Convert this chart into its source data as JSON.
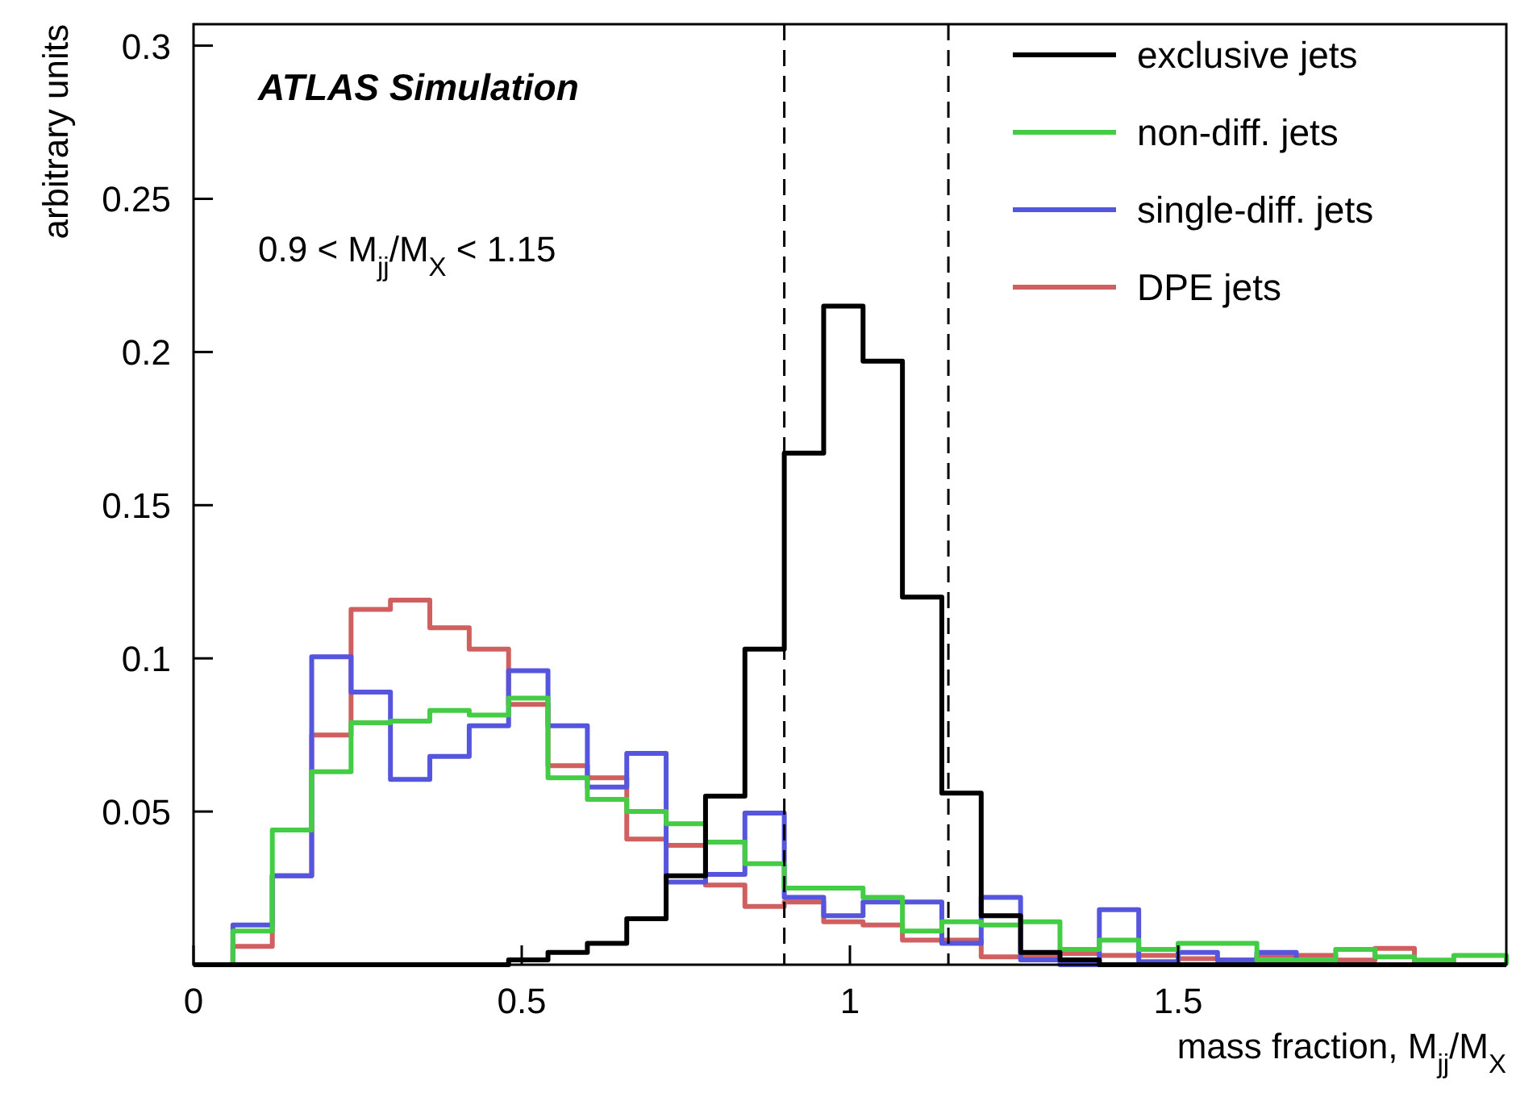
{
  "chart_data": {
    "type": "histogram",
    "xlabel": "mass fraction, M$_{jj}$/M$_{X}$",
    "ylabel": "arbitrary units",
    "annotations": [
      "ATLAS Simulation",
      "0.9 < M$_{jj}$/M$_{X}$ < 1.15"
    ],
    "bins": [
      0,
      0.06,
      0.12,
      0.18,
      0.24,
      0.3,
      0.36,
      0.42,
      0.48,
      0.54,
      0.6,
      0.66,
      0.72,
      0.78,
      0.84,
      0.9,
      0.96,
      1.02,
      1.08,
      1.14,
      1.2,
      1.26,
      1.32,
      1.38,
      1.44,
      1.5,
      1.56,
      1.62,
      1.68,
      1.74,
      1.8,
      1.86,
      1.92,
      1.98,
      2.0
    ],
    "series": [
      {
        "name": "exclusive jets",
        "color": "#000000",
        "values": [
          0,
          0,
          0,
          0,
          0,
          0,
          0,
          0,
          0.0016,
          0.004,
          0.007,
          0.015,
          0.029,
          0.055,
          0.103,
          0.167,
          0.215,
          0.197,
          0.12,
          0.056,
          0.016,
          0.004,
          0.0016,
          0,
          0,
          0,
          0,
          0,
          0,
          0,
          0,
          0,
          0,
          0
        ]
      },
      {
        "name": "non-diff. jets",
        "color": "#44cc44",
        "values": [
          0,
          0.011,
          0.044,
          0.063,
          0.079,
          0.0795,
          0.083,
          0.0815,
          0.087,
          0.061,
          0.054,
          0.05,
          0.046,
          0.04,
          0.033,
          0.025,
          0.025,
          0.022,
          0.011,
          0.014,
          0.013,
          0.014,
          0.005,
          0.008,
          0.005,
          0.007,
          0.007,
          0.0015,
          0.0015,
          0.005,
          0.0026,
          0.0015,
          0.003,
          0.003
        ]
      },
      {
        "name": "single-diff. jets",
        "color": "#5555dd",
        "values": [
          0,
          0.013,
          0.029,
          0.1005,
          0.089,
          0.0605,
          0.068,
          0.078,
          0.096,
          0.078,
          0.058,
          0.069,
          0.027,
          0.0295,
          0.0495,
          0.022,
          0.016,
          0.0205,
          0.0205,
          0.007,
          0.022,
          0.0016,
          0,
          0.018,
          0.001,
          0.004,
          0.0015,
          0.004,
          0.001,
          0,
          0,
          0,
          0,
          0
        ]
      },
      {
        "name": "DPE jets",
        "color": "#d06060",
        "values": [
          0,
          0.006,
          0.029,
          0.075,
          0.116,
          0.119,
          0.11,
          0.103,
          0.085,
          0.065,
          0.061,
          0.041,
          0.039,
          0.026,
          0.019,
          0.0205,
          0.014,
          0.013,
          0.008,
          0.008,
          0.0026,
          0.003,
          0.0037,
          0.003,
          0.003,
          0.002,
          0.0015,
          0.003,
          0.003,
          0.0015,
          0.0053,
          0.001,
          0,
          0
        ]
      }
    ],
    "xlim": [
      0,
      2
    ],
    "xticks": [
      0,
      0.5,
      1,
      1.5
    ],
    "ylim": [
      0,
      0.307
    ],
    "yticks": [
      0.05,
      0.1,
      0.15,
      0.2,
      0.25,
      0.3
    ],
    "ref_lines": [
      {
        "axis": "x",
        "value": 0.9,
        "color": "#000000",
        "line_style": "dashed"
      },
      {
        "axis": "x",
        "value": 1.15,
        "color": "#000000",
        "line_style": "dashed"
      }
    ],
    "legend": "top right",
    "grid": false
  }
}
